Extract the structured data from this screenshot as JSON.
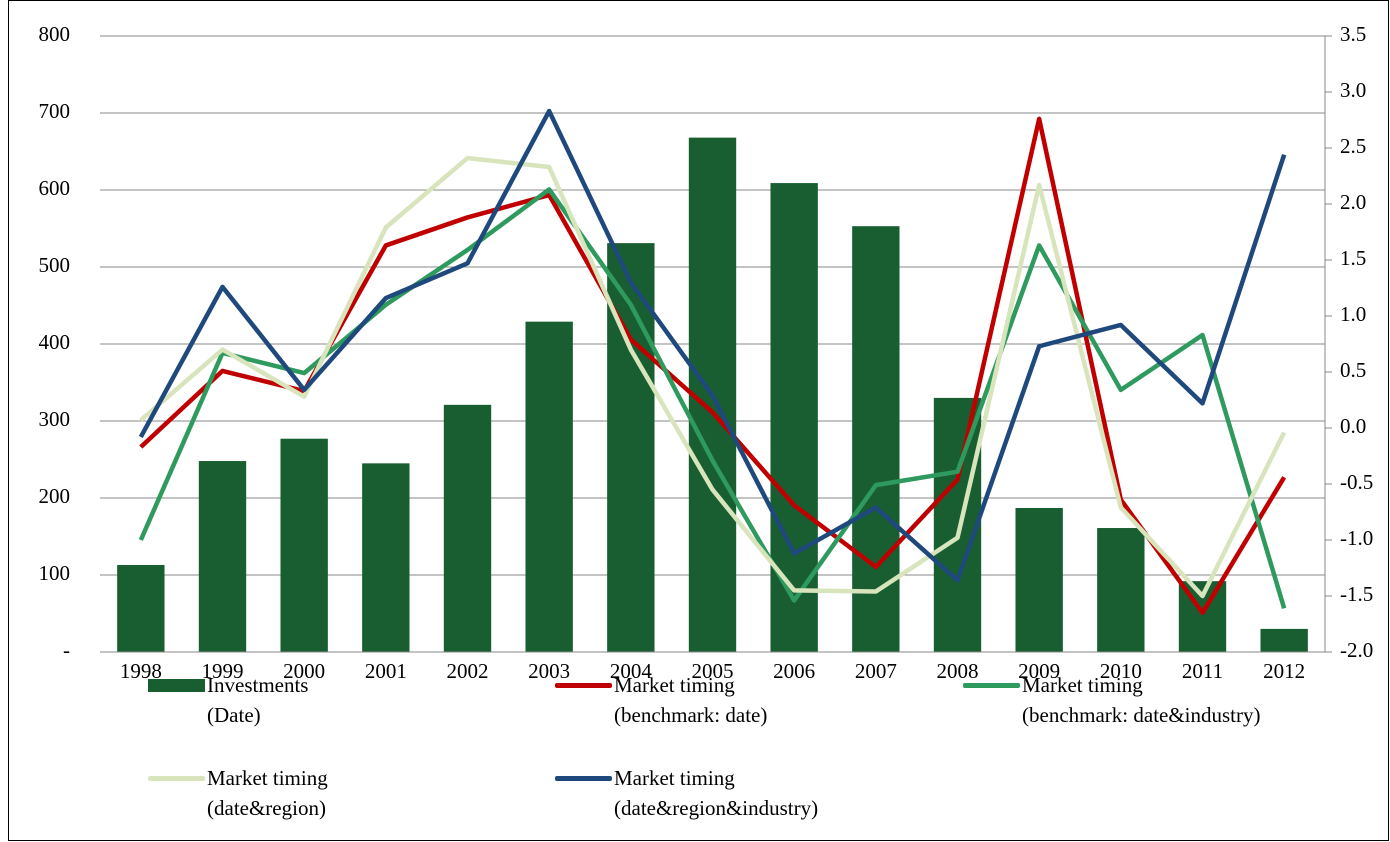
{
  "chart_data": {
    "type": "bar",
    "categories": [
      "1998",
      "1999",
      "2000",
      "2001",
      "2002",
      "2003",
      "2004",
      "2005",
      "2006",
      "2007",
      "2008",
      "2009",
      "2010",
      "2011",
      "2012"
    ],
    "ylim": [
      0,
      800
    ],
    "yticks": [
      {
        "value": 0,
        "label": "-"
      },
      100,
      200,
      300,
      400,
      500,
      600,
      700,
      800
    ],
    "y2lim": [
      -2,
      3.5
    ],
    "y2ticks": [
      {
        "value": -2,
        "label": "-2.0"
      },
      -1.5,
      {
        "value": -1,
        "label": "-1.0"
      },
      -0.5,
      {
        "value": 0,
        "label": "0.0"
      },
      0.5,
      {
        "value": 1,
        "label": "1.0"
      },
      1.5,
      {
        "value": 2,
        "label": "2.0"
      },
      2.5,
      {
        "value": 3,
        "label": "3.0"
      },
      3.5
    ],
    "grid": true,
    "series": [
      {
        "name": "Investments\n(Date)",
        "type": "bar",
        "color": "#195e31",
        "values": [
          113,
          248,
          277,
          245,
          321,
          429,
          531,
          668,
          609,
          553,
          330,
          187,
          161,
          92,
          30
        ]
      },
      {
        "name": "Market timing\n(benchmark: date)",
        "type": "line",
        "axis": "y2",
        "color": "#c00000",
        "values": [
          -0.17,
          0.51,
          0.33,
          1.63,
          1.88,
          2.08,
          0.79,
          0.14,
          -0.69,
          -1.24,
          -0.46,
          2.76,
          -0.64,
          -1.65,
          -0.44
        ]
      },
      {
        "name": "Market timing\n(benchmark: date&industry)",
        "type": "line",
        "axis": "y2",
        "color": "#2e9a5e",
        "values": [
          -1.0,
          0.67,
          0.49,
          1.1,
          1.59,
          2.13,
          1.1,
          -0.29,
          -1.54,
          -0.51,
          -0.39,
          1.63,
          0.34,
          0.83,
          -1.61
        ]
      },
      {
        "name": "Market timing\n(date&region)",
        "type": "line",
        "axis": "y2",
        "color": "#d8e4bc",
        "values": [
          0.07,
          0.7,
          0.28,
          1.79,
          2.41,
          2.33,
          0.7,
          -0.55,
          -1.45,
          -1.46,
          -0.98,
          2.17,
          -0.71,
          -1.5,
          -0.04
        ]
      },
      {
        "name": "Market timing\n(date&region&industry)",
        "type": "line",
        "axis": "y2",
        "color": "#1f497d",
        "values": [
          -0.08,
          1.26,
          0.34,
          1.16,
          1.47,
          2.83,
          1.3,
          0.29,
          -1.12,
          -0.71,
          -1.36,
          0.73,
          0.92,
          0.22,
          2.44
        ]
      }
    ]
  }
}
